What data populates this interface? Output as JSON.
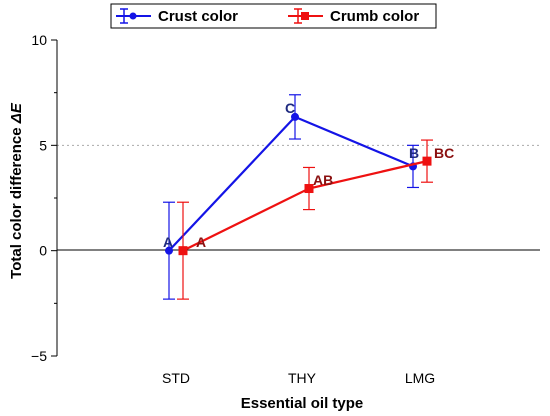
{
  "chart_data": {
    "type": "line",
    "categories": [
      "STD",
      "THY",
      "LMG"
    ],
    "xlabel": "Essential oil type",
    "ylabel": "Total color difference",
    "ylabel_symbol": "ΔE",
    "ylim": [
      -5,
      10
    ],
    "yticks": [
      -5,
      0,
      5,
      10
    ],
    "ytick_labels": [
      "−5",
      "0",
      "5",
      "10"
    ],
    "reference_line": {
      "y": 5,
      "style": "dotted",
      "color": "#aaaaaa"
    },
    "legend": {
      "placement": "top-center"
    },
    "series": [
      {
        "name": "Crust color",
        "color": "#1414e6",
        "marker": "circle",
        "values": [
          0.0,
          6.35,
          4.0
        ],
        "errors": [
          2.3,
          1.05,
          1.0
        ],
        "letters": [
          "A",
          "C",
          "B"
        ],
        "letter_color": "#1f2a80"
      },
      {
        "name": "Crumb color",
        "color": "#ee1111",
        "marker": "square",
        "values": [
          0.0,
          2.95,
          4.25
        ],
        "errors": [
          2.3,
          1.0,
          1.0
        ],
        "letters": [
          "A",
          "AB",
          "BC"
        ],
        "letter_color": "#8b1010"
      }
    ]
  }
}
